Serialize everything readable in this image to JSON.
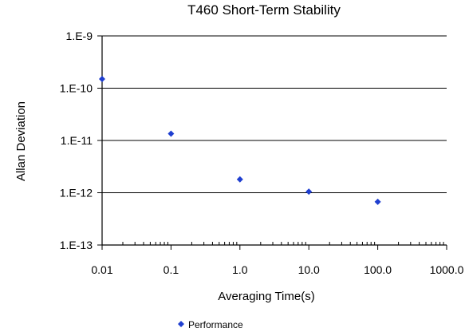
{
  "chart_data": {
    "type": "scatter",
    "title": "T460  Short-Term Stability",
    "xlabel": "Averaging Time(s)",
    "ylabel": "Allan Deviation",
    "xscale": "log",
    "yscale": "log",
    "xlim": [
      0.01,
      1000
    ],
    "ylim": [
      1e-13,
      1e-09
    ],
    "x_tick_labels": [
      "0.01",
      "0.1",
      "1.0",
      "10.0",
      "100.0",
      "1000.0"
    ],
    "y_tick_labels": [
      "1.E-9",
      "1.E-10",
      "1.E-11",
      "1.E-12",
      "1.E-13"
    ],
    "grid": "horizontal major",
    "legend_position": "bottom",
    "series": [
      {
        "name": "Performance",
        "color": "#1f3fd0",
        "marker": "diamond",
        "x": [
          0.01,
          0.1,
          1,
          10,
          100
        ],
        "y": [
          1.5e-10,
          1.35e-11,
          1.8e-12,
          1.05e-12,
          6.7e-13
        ]
      }
    ]
  }
}
